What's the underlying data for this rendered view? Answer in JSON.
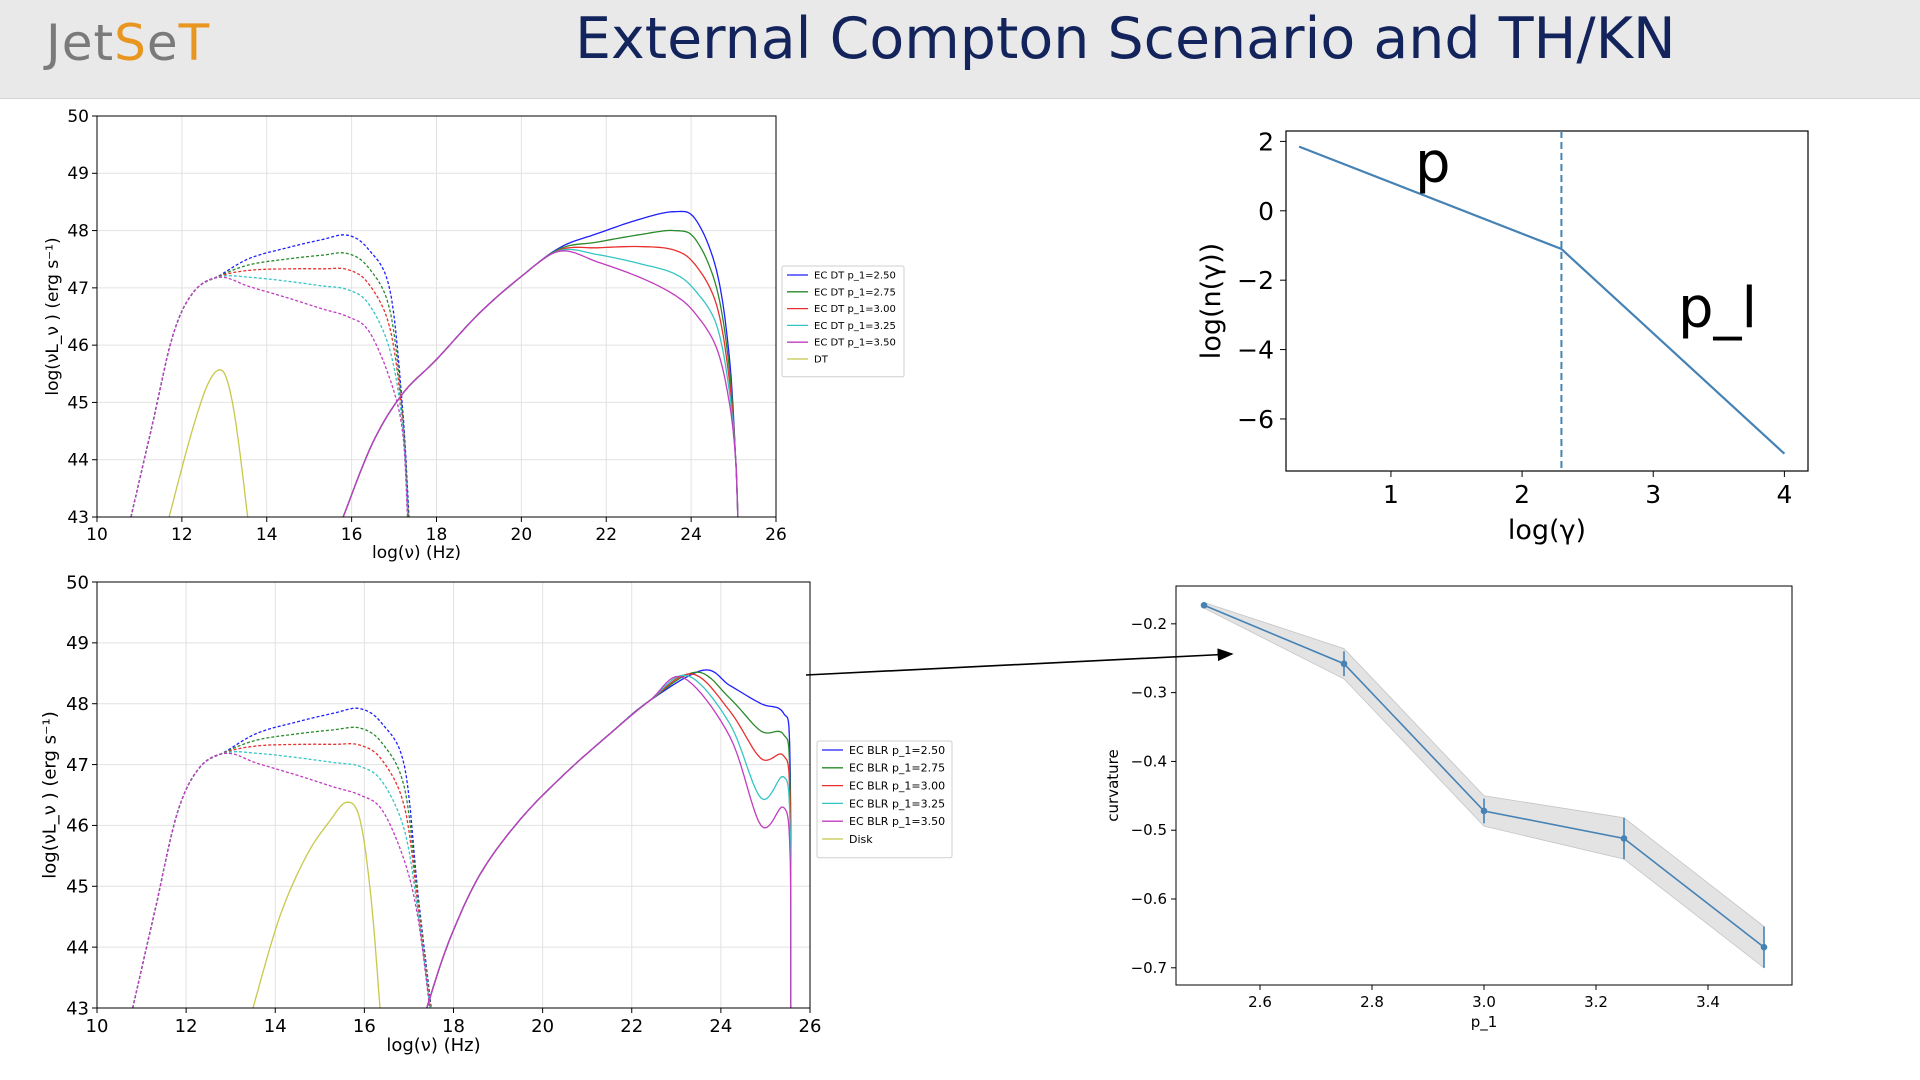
{
  "header": {
    "logo": {
      "part1": "Jet",
      "part2": "S",
      "part3": "e",
      "part4": "T"
    },
    "title": "External  Compton Scenario  and TH/KN"
  },
  "colors": {
    "header_bg": "#e9e9e9",
    "title": "#13235b",
    "logo_orange": "#e8961f",
    "logo_gray": "#7a7a7a",
    "curve_blue": "#4682b4"
  },
  "chart_data": [
    {
      "id": "sed_dt",
      "type": "line",
      "xlabel": "log(ν)  (Hz)",
      "ylabel": "log(νL_ν )  (erg  s⁻¹)",
      "xlim": [
        10,
        26
      ],
      "ylim": [
        43,
        50
      ],
      "xticks": [
        10,
        12,
        14,
        16,
        18,
        20,
        22,
        24,
        26
      ],
      "yticks": [
        43,
        44,
        45,
        46,
        47,
        48,
        49,
        50
      ],
      "grid": true,
      "legend_position": "right-outside",
      "series": [
        {
          "name": "EC DT p_1=2.50",
          "color": "#1f1fff",
          "sync_peak": 47.92,
          "ic_peak": 48.33,
          "ic_plateau": 48.33
        },
        {
          "name": "EC DT p_1=2.75",
          "color": "#2a8a2a",
          "sync_peak": 47.6,
          "ic_peak": 48.02,
          "ic_plateau": 47.95
        },
        {
          "name": "EC DT p_1=3.00",
          "color": "#e8302e",
          "sync_peak": 47.32,
          "ic_peak": 47.76,
          "ic_plateau": 47.7
        },
        {
          "name": "EC DT p_1=3.25",
          "color": "#35c5c5",
          "sync_peak": 46.97,
          "ic_peak": 47.62,
          "ic_plateau": 47.3
        },
        {
          "name": "EC DT p_1=3.50",
          "color": "#c03cc0",
          "sync_peak": 46.5,
          "ic_peak": 47.6,
          "ic_plateau": 46.9
        },
        {
          "name": "DT",
          "color": "#c8c84a",
          "x": [
            11.7,
            12.2,
            12.6,
            12.9,
            13.1,
            13.3,
            13.55
          ],
          "y": [
            43.0,
            44.4,
            45.3,
            45.57,
            45.3,
            44.5,
            43.0
          ]
        }
      ]
    },
    {
      "id": "electron_distribution",
      "type": "line",
      "xlabel": "log(γ)",
      "ylabel": "log(n(γ))",
      "xlim": [
        0.2,
        4.18
      ],
      "ylim": [
        -7.5,
        2.3
      ],
      "xticks": [
        1,
        2,
        3,
        4
      ],
      "yticks": [
        2,
        0,
        -2,
        -4,
        -6
      ],
      "ytick_labels": [
        "2",
        "0",
        "−2",
        "−4",
        "−6"
      ],
      "grid": false,
      "x": [
        0.3,
        2.3,
        4.0
      ],
      "y": [
        1.85,
        -1.1,
        -7.0
      ],
      "break_x": 2.3,
      "annotations": [
        "p",
        "p_l"
      ]
    },
    {
      "id": "sed_blr",
      "type": "line",
      "xlabel": "log(ν)  (Hz)",
      "ylabel": "log(νL_ν )  (erg  s⁻¹)",
      "xlim": [
        10,
        26
      ],
      "ylim": [
        43,
        50
      ],
      "xticks": [
        10,
        12,
        14,
        16,
        18,
        20,
        22,
        24,
        26
      ],
      "yticks": [
        43,
        44,
        45,
        46,
        47,
        48,
        49,
        50
      ],
      "grid": true,
      "legend_position": "right-outside",
      "series": [
        {
          "name": "EC BLR p_1=2.50",
          "color": "#1f1fff",
          "sync_peak": 47.92,
          "ic_drop": 48.05
        },
        {
          "name": "EC BLR p_1=2.75",
          "color": "#2a8a2a",
          "sync_peak": 47.6,
          "ic_drop": 47.7
        },
        {
          "name": "EC BLR p_1=3.00",
          "color": "#e8302e",
          "sync_peak": 47.32,
          "ic_drop": 47.35
        },
        {
          "name": "EC BLR p_1=3.25",
          "color": "#35c5c5",
          "sync_peak": 46.97,
          "ic_drop": 47.0
        },
        {
          "name": "EC BLR p_1=3.50",
          "color": "#c03cc0",
          "sync_peak": 46.5,
          "ic_drop": 46.5
        },
        {
          "name": "Disk",
          "color": "#c8c84a",
          "x": [
            13.5,
            14.1,
            14.7,
            15.2,
            15.6,
            15.9,
            16.15,
            16.35
          ],
          "y": [
            43.0,
            44.5,
            45.5,
            46.05,
            46.38,
            46.1,
            44.8,
            43.0
          ]
        }
      ]
    },
    {
      "id": "curvature",
      "type": "line",
      "xlabel": "p_1",
      "ylabel": "curvature",
      "xlim": [
        2.45,
        3.55
      ],
      "ylim": [
        -0.725,
        -0.145
      ],
      "xticks": [
        2.6,
        2.8,
        3.0,
        3.2,
        3.4
      ],
      "xtick_labels": [
        "2.6",
        "2.8",
        "3.0",
        "3.2",
        "3.4"
      ],
      "yticks": [
        -0.2,
        -0.3,
        -0.4,
        -0.5,
        -0.6,
        -0.7
      ],
      "ytick_labels": [
        "−0.2",
        "−0.3",
        "−0.4",
        "−0.5",
        "−0.6",
        "−0.7"
      ],
      "grid": false,
      "x": [
        2.5,
        2.75,
        3.0,
        3.25,
        3.5
      ],
      "y": [
        -0.173,
        -0.258,
        -0.472,
        -0.512,
        -0.67
      ],
      "err": [
        0.004,
        0.018,
        0.018,
        0.03,
        0.03
      ],
      "band": [
        0.004,
        0.022,
        0.022,
        0.03,
        0.03
      ]
    }
  ]
}
